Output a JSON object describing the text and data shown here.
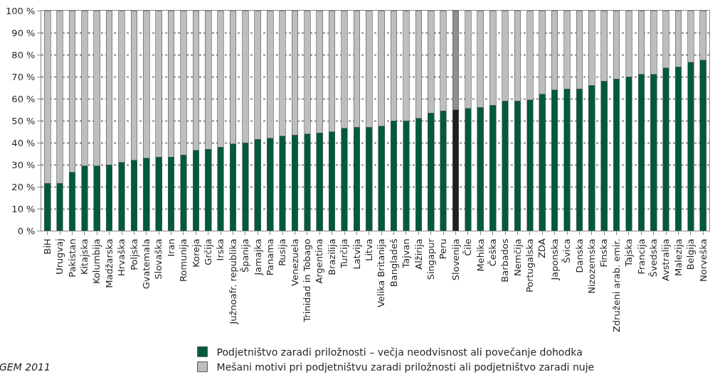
{
  "chart_data": {
    "type": "bar",
    "stacked": true,
    "categories": [
      "BiH",
      "Urugvaj",
      "Pakistan",
      "Kitajska",
      "Kolumbija",
      "Madžarska",
      "Hrvaška",
      "Poljska",
      "Gvatemala",
      "Slovaška",
      "Iran",
      "Romunija",
      "Koreja",
      "Grčija",
      "Irska",
      "Južnoafr. republika",
      "Španija",
      "Jamajka",
      "Panama",
      "Rusija",
      "Venezuela",
      "Trinidad in Tobago",
      "Argentina",
      "Brazilija",
      "Turčija",
      "Latvija",
      "Litva",
      "Velika Britanija",
      "Bangladeš",
      "Tajvan",
      "Alžirija",
      "Singapur",
      "Peru",
      "Slovenija",
      "Čile",
      "Mehika",
      "Češka",
      "Barbados",
      "Nemčija",
      "Portugalska",
      "ZDA",
      "Japonska",
      "Švica",
      "Danska",
      "Nizozemska",
      "Finska",
      "Združeni arab. emir.",
      "Tajska",
      "Francija",
      "Švedska",
      "Avstralija",
      "Malezija",
      "Belgija",
      "Norveška"
    ],
    "series": [
      {
        "name": "Podjetništvo zaradi priložnosti – večja neodvisnost ali povečanje dohodka",
        "color": "#005a3c",
        "colors": [
          "#005a3c",
          "#005a3c",
          "#005a3c",
          "#005a3c",
          "#005a3c",
          "#005a3c",
          "#005a3c",
          "#005a3c",
          "#005a3c",
          "#005a3c",
          "#005a3c",
          "#005a3c",
          "#005a3c",
          "#005a3c",
          "#005a3c",
          "#005a3c",
          "#005a3c",
          "#005a3c",
          "#005a3c",
          "#005a3c",
          "#005a3c",
          "#005a3c",
          "#005a3c",
          "#005a3c",
          "#005a3c",
          "#005a3c",
          "#005a3c",
          "#005a3c",
          "#005a3c",
          "#005a3c",
          "#005a3c",
          "#005a3c",
          "#005a3c",
          "#231f20",
          "#005a3c",
          "#005a3c",
          "#005a3c",
          "#005a3c",
          "#005a3c",
          "#005a3c",
          "#005a3c",
          "#005a3c",
          "#005a3c",
          "#005a3c",
          "#005a3c",
          "#005a3c",
          "#005a3c",
          "#005a3c",
          "#005a3c",
          "#005a3c",
          "#005a3c",
          "#005a3c",
          "#005a3c",
          "#005a3c"
        ],
        "values": [
          21.5,
          21.5,
          26.5,
          29.5,
          29.5,
          30,
          31,
          32,
          33,
          33.5,
          33.5,
          34.5,
          36.5,
          37,
          38,
          39.5,
          40,
          41.5,
          42,
          43,
          43.5,
          44,
          44.5,
          45,
          46.5,
          47,
          47,
          47.5,
          50,
          50,
          51,
          53.5,
          54.5,
          55,
          55.5,
          56,
          57,
          59,
          59,
          59.5,
          62,
          64,
          64.5,
          64.5,
          66,
          68,
          69,
          70,
          71,
          71,
          74,
          74.5,
          76.5,
          77.5
        ]
      },
      {
        "name": "Mešani motivi pri podjetništvu zaradi priložnosti ali podjetništvo zaradi nuje",
        "color": "#bcbec0",
        "colors": [
          "#bcbec0",
          "#bcbec0",
          "#bcbec0",
          "#bcbec0",
          "#bcbec0",
          "#bcbec0",
          "#bcbec0",
          "#bcbec0",
          "#bcbec0",
          "#bcbec0",
          "#bcbec0",
          "#bcbec0",
          "#bcbec0",
          "#bcbec0",
          "#bcbec0",
          "#bcbec0",
          "#bcbec0",
          "#bcbec0",
          "#bcbec0",
          "#bcbec0",
          "#bcbec0",
          "#bcbec0",
          "#bcbec0",
          "#bcbec0",
          "#bcbec0",
          "#bcbec0",
          "#bcbec0",
          "#bcbec0",
          "#bcbec0",
          "#bcbec0",
          "#bcbec0",
          "#bcbec0",
          "#bcbec0",
          "#8e8f92",
          "#bcbec0",
          "#bcbec0",
          "#bcbec0",
          "#bcbec0",
          "#bcbec0",
          "#bcbec0",
          "#bcbec0",
          "#bcbec0",
          "#bcbec0",
          "#bcbec0",
          "#bcbec0",
          "#bcbec0",
          "#bcbec0",
          "#bcbec0",
          "#bcbec0",
          "#bcbec0",
          "#bcbec0",
          "#bcbec0",
          "#bcbec0",
          "#bcbec0"
        ],
        "values": [
          78.5,
          78.5,
          73.5,
          70.5,
          70.5,
          70,
          69,
          68,
          67,
          66.5,
          66.5,
          65.5,
          63.5,
          63,
          62,
          60.5,
          60,
          58.5,
          58,
          57,
          56.5,
          56,
          55.5,
          55,
          53.5,
          53,
          53,
          52.5,
          50,
          50,
          49,
          46.5,
          45.5,
          45,
          44.5,
          44,
          43,
          41,
          41,
          40.5,
          38,
          36,
          35.5,
          35.5,
          34,
          32,
          31,
          30,
          29,
          29,
          26,
          25.5,
          23.5,
          22.5
        ]
      }
    ],
    "ylim": [
      0,
      100
    ],
    "yticks": [
      {
        "value": 0,
        "label": "0 %"
      },
      {
        "value": 10,
        "label": "10 %"
      },
      {
        "value": 20,
        "label": "20 %"
      },
      {
        "value": 30,
        "label": "30 %"
      },
      {
        "value": 40,
        "label": "40 %"
      },
      {
        "value": 50,
        "label": "50 %"
      },
      {
        "value": 60,
        "label": "60 %"
      },
      {
        "value": 70,
        "label": "70 %"
      },
      {
        "value": 80,
        "label": "80 %"
      },
      {
        "value": 90,
        "label": "90 %"
      },
      {
        "value": 100,
        "label": "100 %"
      }
    ],
    "grid": "y",
    "legend": "bottom",
    "annotations": [
      "GEM 2011"
    ]
  }
}
